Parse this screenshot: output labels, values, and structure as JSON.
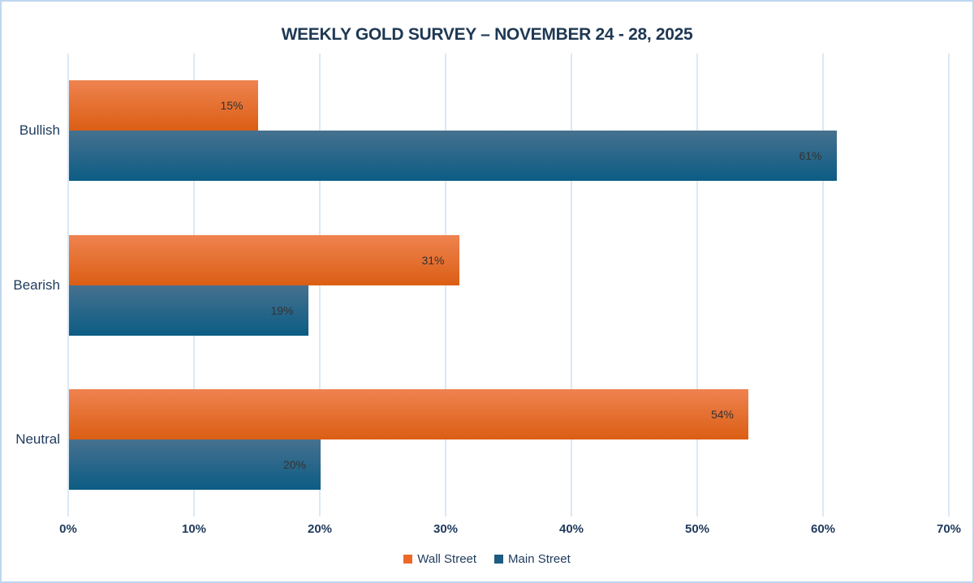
{
  "chart_data": {
    "type": "bar",
    "orientation": "horizontal",
    "title": "WEEKLY GOLD SURVEY – NOVEMBER 24 - 28, 2025",
    "categories": [
      "Bullish",
      "Bearish",
      "Neutral"
    ],
    "series": [
      {
        "name": "Wall Street",
        "values": [
          15,
          31,
          54
        ],
        "legend_color": "#EB6A28",
        "gradient_top": "#EF8350",
        "gradient_bottom": "#DB5E14"
      },
      {
        "name": "Main Street",
        "values": [
          61,
          19,
          20
        ],
        "legend_color": "#1D5B80",
        "gradient_top": "#46718F",
        "gradient_bottom": "#0C5C84"
      }
    ],
    "value_suffix": "%",
    "xlim": [
      0,
      70
    ],
    "x_tick_step": 10,
    "x_ticks": [
      "0%",
      "10%",
      "20%",
      "30%",
      "40%",
      "50%",
      "60%",
      "70%"
    ],
    "grid": "vertical-only",
    "legend_position": "bottom-center"
  },
  "colors": {
    "background": "#FFFFFF",
    "frame_border": "#BDD7EE",
    "gridline": "#DBE8F5",
    "title_text": "#1E3853",
    "axis_text": "#1E3A5C",
    "value_text": "#333333"
  }
}
